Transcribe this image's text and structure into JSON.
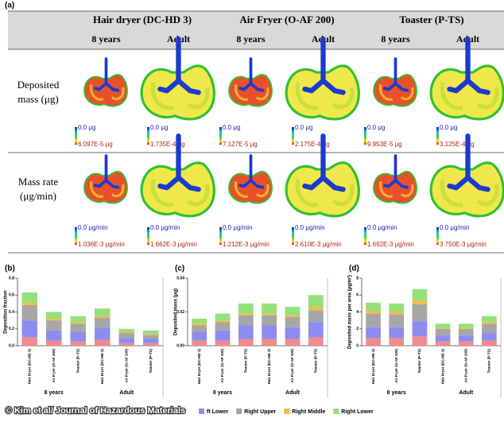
{
  "panel_a": {
    "label": "(a)",
    "devices": [
      "Hair dryer (DC-HD 3)",
      "Air Fryer (O-AF 200)",
      "Toaster (P-TS)"
    ],
    "ages": [
      "8 years",
      "Adult",
      "8 years",
      "Adult",
      "8 years",
      "Adult"
    ],
    "rows": [
      {
        "label": [
          "Deposited",
          "mass (μg)"
        ],
        "scales": [
          {
            "min": "0.0 μg",
            "max": "6.097E-5 μg"
          },
          {
            "min": "0.0 μg",
            "max": "1.735E-4 μg"
          },
          {
            "min": "0.0 μg",
            "max": "7.127E-5 μg"
          },
          {
            "min": "0.0 μg",
            "max": "2.175E-4 μg"
          },
          {
            "min": "0.0 μg",
            "max": "9.953E-5 μg"
          },
          {
            "min": "0.0 μg",
            "max": "3.125E-4 μg"
          }
        ]
      },
      {
        "label": [
          "Mass rate",
          "(μg/min)"
        ],
        "scales": [
          {
            "min": "0.0 μg/min",
            "max": "1.036E-3 μg/min"
          },
          {
            "min": "0.0 μg/min",
            "max": "1.662E-3 μg/min"
          },
          {
            "min": "0.0 μg/min",
            "max": "1.212E-3 μg/min"
          },
          {
            "min": "0.0 μg/min",
            "max": "2.610E-3 μg/min"
          },
          {
            "min": "0.0 μg/min",
            "max": "1.692E-3 μg/min"
          },
          {
            "min": "0.0 μg/min",
            "max": "3.750E-3 μg/min"
          }
        ]
      }
    ]
  },
  "credit": "© Kim et al/ Journal of Hazardous Materials",
  "chart_data": [
    {
      "type": "stacked_bar",
      "panel": "(b)",
      "ylabel": "Deposition fraction",
      "categories": [
        "Hair Dryer (DC-HD 3)",
        "Air Fryer (O-AF 200)",
        "Toaster (P-TS)",
        "Hair Dryer (DC-HD 3)",
        "Air Fryer (O-AF 200)",
        "Toaster (P-TS)"
      ],
      "groups": [
        "8 years",
        "Adult"
      ],
      "ylim": [
        0,
        0.8
      ],
      "yticks": [
        {
          "value": 0,
          "label": "0.0"
        },
        0.2,
        0.4,
        0.6,
        0.8
      ],
      "series": [
        {
          "color": "#f28b8b",
          "values": [
            0.1,
            0.06,
            0.05,
            0.07,
            0.03,
            0.03
          ]
        },
        {
          "name": "ft Lower",
          "color": "#8c8cf0",
          "values": [
            0.2,
            0.12,
            0.11,
            0.14,
            0.06,
            0.05
          ]
        },
        {
          "name": "Right Upper",
          "color": "#a6a6a6",
          "values": [
            0.18,
            0.12,
            0.1,
            0.12,
            0.06,
            0.05
          ]
        },
        {
          "name": "Right Middle",
          "color": "#f5bb45",
          "values": [
            0.03,
            0.02,
            0.02,
            0.02,
            0.01,
            0.01
          ]
        },
        {
          "name": "Right Lower",
          "color": "#95e07a",
          "values": [
            0.12,
            0.08,
            0.07,
            0.09,
            0.04,
            0.04
          ]
        }
      ]
    },
    {
      "type": "stacked_bar",
      "panel": "(c)",
      "ylabel": "Deposited mass (μg)",
      "categories": [
        "Hair Dryer (DC-HD 3)",
        "Air Fryer (O-AF 200)",
        "Toaster (P-TS)",
        "Hair Dryer (DC-HD 3)",
        "Air Fryer (O-AF 200)",
        "Toaster (P-TS)"
      ],
      "groups": [
        "8 years",
        "Adult"
      ],
      "ylim": [
        0,
        0.04
      ],
      "yticks": [
        {
          "value": 0,
          "label": "0.00"
        },
        {
          "value": 0.02,
          "label": "0.02"
        },
        {
          "value": 0.04,
          "label": "0.04"
        }
      ],
      "series": [
        {
          "color": "#f28b8b",
          "values": [
            0.003,
            0.003,
            0.004,
            0.004,
            0.004,
            0.005
          ]
        },
        {
          "color": "#8c8cf0",
          "values": [
            0.005,
            0.006,
            0.008,
            0.008,
            0.007,
            0.009
          ]
        },
        {
          "color": "#a6a6a6",
          "values": [
            0.004,
            0.005,
            0.006,
            0.006,
            0.006,
            0.007
          ]
        },
        {
          "color": "#f5bb45",
          "values": [
            0.001,
            0.001,
            0.001,
            0.001,
            0.001,
            0.002
          ]
        },
        {
          "color": "#95e07a",
          "values": [
            0.003,
            0.004,
            0.006,
            0.006,
            0.005,
            0.007
          ]
        }
      ]
    },
    {
      "type": "stacked_bar",
      "panel": "(d)",
      "ylabel": "Deposited mass per area (μg/m²)",
      "categories": [
        "Hair Dryer (DC-HD 3)",
        "Air Fryer (O-AF 200)",
        "Toaster (P-TS)",
        "Hair Dryer (DC-HD 3)",
        "Air Fryer (O-AF 200)",
        "Toaster (P-TS)"
      ],
      "groups": [
        "8 years",
        "Adult"
      ],
      "ylim": [
        0,
        8
      ],
      "yticks": [
        0,
        2,
        4,
        6,
        8
      ],
      "series": [
        {
          "color": "#f28b8b",
          "values": [
            0.9,
            0.9,
            1.1,
            0.5,
            0.5,
            0.6
          ]
        },
        {
          "color": "#8c8cf0",
          "values": [
            1.3,
            1.3,
            1.8,
            0.7,
            0.7,
            0.9
          ]
        },
        {
          "color": "#a6a6a6",
          "values": [
            1.6,
            1.5,
            2.0,
            0.8,
            0.8,
            1.1
          ]
        },
        {
          "color": "#f5bb45",
          "values": [
            0.3,
            0.3,
            0.4,
            0.1,
            0.1,
            0.2
          ]
        },
        {
          "color": "#95e07a",
          "values": [
            1.0,
            1.0,
            1.4,
            0.5,
            0.5,
            0.7
          ]
        }
      ]
    }
  ]
}
